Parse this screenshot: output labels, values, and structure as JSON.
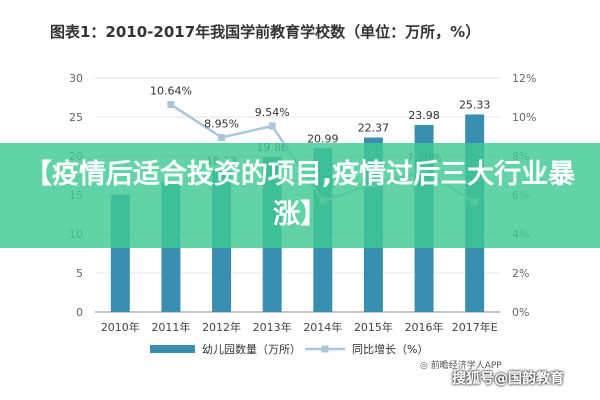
{
  "chart_data": {
    "type": "bar",
    "title": "图表1：2010-2017年我国学前教育学校数（单位：万所，%）",
    "categories": [
      "2010年",
      "2011年",
      "2012年",
      "2013年",
      "2014年",
      "2015年",
      "2016年",
      "2017年E"
    ],
    "series": [
      {
        "name": "幼儿园数量（万所）",
        "type": "bar",
        "axis": "left",
        "values": [
          15.04,
          16.68,
          18.13,
          19.86,
          20.99,
          22.37,
          23.98,
          25.33
        ],
        "labels": [
          "",
          "",
          "18.13",
          "19.86",
          "20.99",
          "22.37",
          "23.98",
          "25.33"
        ]
      },
      {
        "name": "同比增长（%）",
        "type": "line",
        "axis": "right",
        "values": [
          null,
          10.64,
          8.95,
          9.54,
          5.69,
          6.57,
          7.2,
          5.63
        ],
        "labels": [
          "",
          "10.64%",
          "8.95%",
          "9.54%",
          "",
          "",
          "7.20%",
          ""
        ]
      }
    ],
    "y_left": {
      "min": 0,
      "max": 30,
      "ticks": [
        "0",
        "5",
        "10",
        "15",
        "20",
        "25",
        "30"
      ]
    },
    "y_right": {
      "min": 0,
      "max": 12,
      "ticks": [
        "0%",
        "2%",
        "4%",
        "6%",
        "8%",
        "10%",
        "12%"
      ]
    },
    "grid": true,
    "legend": "bottom",
    "colors": {
      "bar": "#3a8fb0",
      "line": "#a9c6dc",
      "title": "#333333"
    }
  },
  "overlay": {
    "headline": "【疫情后适合投资的项目,疫情过后三大行业暴涨】",
    "source": "◎ 前瞻经济学人APP",
    "watermark": "搜狐号@国韵教育"
  }
}
